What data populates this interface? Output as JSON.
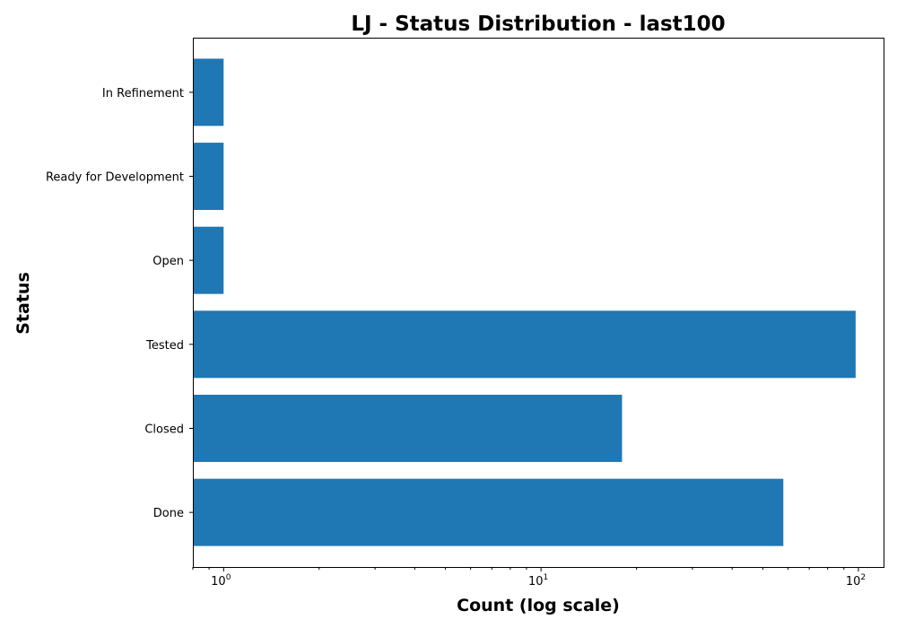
{
  "chart_data": {
    "type": "bar",
    "orientation": "horizontal",
    "title": "LJ - Status Distribution - last100",
    "xlabel": "Count (log scale)",
    "ylabel": "Status",
    "x_scale": "log",
    "xlim": [
      0.8,
      120
    ],
    "x_ticks": [
      {
        "value": 1,
        "base": "10",
        "exp": "0"
      },
      {
        "value": 10,
        "base": "10",
        "exp": "1"
      },
      {
        "value": 100,
        "base": "10",
        "exp": "2"
      }
    ],
    "categories": [
      "Done",
      "Closed",
      "Tested",
      "Open",
      "Ready for Development",
      "In Refinement"
    ],
    "values": [
      58,
      18,
      98,
      1,
      1,
      1
    ],
    "bar_color": "#1f77b4",
    "grid": false,
    "legend": "none"
  }
}
